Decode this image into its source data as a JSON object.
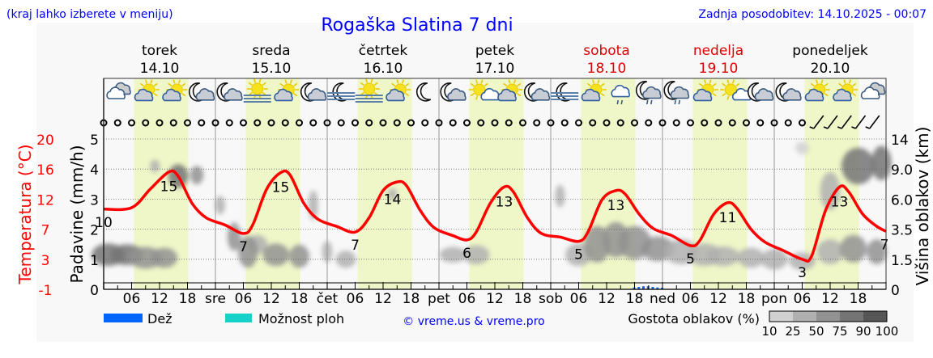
{
  "header": {
    "menu_hint": "(kraj lahko izberete v meniju)",
    "title": "Rogaška Slatina 7 dni",
    "updated": "Zadnja posodobitev: 14.10.2025 - 00:07"
  },
  "days": [
    {
      "name": "torek",
      "date": "14.10",
      "abbr": "",
      "weekend": false,
      "icons": [
        "cloudy",
        "partly-sunny",
        "partly-sunny",
        "moon-cloud"
      ]
    },
    {
      "name": "sreda",
      "date": "15.10",
      "abbr": "sre",
      "weekend": false,
      "icons": [
        "moon-cloud",
        "sun-fog",
        "partly-sunny",
        "moon-cloud"
      ]
    },
    {
      "name": "četrtek",
      "date": "16.10",
      "abbr": "čet",
      "weekend": false,
      "icons": [
        "moon-fog",
        "sun-fog",
        "partly-sunny",
        "moon"
      ]
    },
    {
      "name": "petek",
      "date": "17.10",
      "abbr": "pet",
      "weekend": false,
      "icons": [
        "moon-cloud",
        "sun-small-cloud",
        "partly-sunny",
        "moon-cloud"
      ]
    },
    {
      "name": "sobota",
      "date": "18.10",
      "abbr": "sob",
      "weekend": true,
      "icons": [
        "moon-fog",
        "partly-sunny",
        "cloud-rain",
        "moon-rain"
      ]
    },
    {
      "name": "nedelja",
      "date": "19.10",
      "abbr": "ned",
      "weekend": true,
      "icons": [
        "moon-rain",
        "partly-sunny",
        "sun-small-cloud",
        "moon-cloud"
      ]
    },
    {
      "name": "ponedeljek",
      "date": "20.10",
      "abbr": "pon",
      "weekend": false,
      "icons": [
        "moon-cloud",
        "partly-sunny",
        "partly-sunny",
        "cloudy"
      ]
    }
  ],
  "legend": {
    "rain": "Dež",
    "showers": "Možnost ploh",
    "copyright": "© vreme.us & vreme.pro",
    "cloud_density": "Gostota oblakov (%)",
    "cloud_scale": [
      "10",
      "25",
      "50",
      "75",
      "90",
      "100"
    ]
  },
  "colors": {
    "temperature": "#ff0000",
    "rain": "#0064ff",
    "showers": "#14d2c8",
    "daylight": "#eff7c8",
    "title": "#0000ff",
    "weekend": "#dd0000",
    "cloud_scale": [
      "#d0d0d0",
      "#b0b0b0",
      "#929292",
      "#747474",
      "#565656"
    ]
  },
  "chart_data": {
    "type": "line",
    "title": "Rogaška Slatina 7 dni",
    "x_unit": "hours from 14.10 00:00",
    "xlim": [
      0,
      168
    ],
    "hour_ticks": [
      "06",
      "12",
      "18"
    ],
    "left_axis_temp": {
      "label": "Temperatura (°C)",
      "ticks": [
        "20",
        "16",
        "12",
        "7",
        "3",
        "-1"
      ],
      "range": [
        -1,
        20
      ]
    },
    "left_axis_precip": {
      "label": "Padavine (mm/h)",
      "ticks": [
        "5",
        "4",
        "3",
        "2",
        "1",
        "0"
      ],
      "range": [
        0,
        5
      ]
    },
    "right_axis_cloud": {
      "label": "Višina oblakov (km)",
      "ticks": [
        "14",
        "9.0",
        "6.0",
        "3.5",
        "1.5",
        "0"
      ],
      "values": [
        14,
        9,
        6,
        3.5,
        1.5,
        0
      ]
    },
    "temperature": [
      [
        0,
        10.2
      ],
      [
        6,
        10.4
      ],
      [
        10,
        13
      ],
      [
        14,
        15.4
      ],
      [
        16,
        14.8
      ],
      [
        19,
        11
      ],
      [
        22,
        9
      ],
      [
        26,
        8
      ],
      [
        30,
        6.8
      ],
      [
        32,
        8
      ],
      [
        35,
        13
      ],
      [
        38,
        15.3
      ],
      [
        40,
        15
      ],
      [
        43,
        11
      ],
      [
        46,
        8.8
      ],
      [
        50,
        7.8
      ],
      [
        54,
        7
      ],
      [
        57,
        9
      ],
      [
        60,
        12.8
      ],
      [
        63,
        14
      ],
      [
        65,
        13.5
      ],
      [
        68,
        10
      ],
      [
        71,
        7.6
      ],
      [
        75,
        6.5
      ],
      [
        78,
        5.9
      ],
      [
        80,
        7
      ],
      [
        83,
        11
      ],
      [
        86,
        13.3
      ],
      [
        88,
        12.6
      ],
      [
        91,
        9
      ],
      [
        94,
        6.8
      ],
      [
        98,
        6.3
      ],
      [
        102,
        5.7
      ],
      [
        104,
        7
      ],
      [
        107,
        11.5
      ],
      [
        110,
        12.8
      ],
      [
        112,
        12.3
      ],
      [
        115,
        9.5
      ],
      [
        118,
        7.5
      ],
      [
        122,
        6.5
      ],
      [
        126,
        5.1
      ],
      [
        128,
        5.8
      ],
      [
        131,
        9.5
      ],
      [
        134,
        11.1
      ],
      [
        136,
        10.3
      ],
      [
        139,
        7.4
      ],
      [
        142,
        5.6
      ],
      [
        146,
        4.4
      ],
      [
        150,
        3.2
      ],
      [
        152,
        3.6
      ],
      [
        155,
        10
      ],
      [
        158,
        13.3
      ],
      [
        160,
        12.6
      ],
      [
        163,
        9.5
      ],
      [
        166,
        7.8
      ],
      [
        168,
        7.1
      ]
    ],
    "temp_labels": [
      [
        0,
        "10"
      ],
      [
        14,
        "15"
      ],
      [
        30,
        "7"
      ],
      [
        38,
        "15"
      ],
      [
        54,
        "7"
      ],
      [
        62,
        "14"
      ],
      [
        78,
        "6"
      ],
      [
        86,
        "13"
      ],
      [
        102,
        "5"
      ],
      [
        110,
        "13"
      ],
      [
        126,
        "5"
      ],
      [
        134,
        "11"
      ],
      [
        150,
        "3"
      ],
      [
        158,
        "13"
      ],
      [
        168,
        "7"
      ]
    ],
    "precipitation": [
      [
        114,
        0.06
      ],
      [
        115,
        0.08
      ],
      [
        116,
        0.1
      ],
      [
        117,
        0.1
      ],
      [
        118,
        0.08
      ],
      [
        119,
        0.06
      ],
      [
        120,
        0.05
      ]
    ],
    "cloud_cells": [
      [
        1,
        1.8,
        75,
        5,
        1.0
      ],
      [
        5,
        1.8,
        75,
        5,
        0.9
      ],
      [
        9,
        1.6,
        60,
        5,
        0.9
      ],
      [
        13,
        1.6,
        50,
        4,
        0.8
      ],
      [
        11,
        9.5,
        30,
        1.5,
        1
      ],
      [
        16,
        8.3,
        80,
        3,
        1.8
      ],
      [
        20,
        8.4,
        60,
        2,
        1.2
      ],
      [
        25,
        5.5,
        35,
        1.5,
        1
      ],
      [
        28,
        3.0,
        55,
        2,
        1.5
      ],
      [
        33,
        2.5,
        40,
        3,
        0.8
      ],
      [
        31,
        2.0,
        60,
        3,
        1.6
      ],
      [
        37,
        1.8,
        55,
        4,
        1
      ],
      [
        42,
        1.7,
        55,
        3,
        1
      ],
      [
        45,
        5.5,
        35,
        1,
        2
      ],
      [
        48,
        2.0,
        30,
        1.5,
        1
      ],
      [
        52,
        1.5,
        25,
        3,
        0.6
      ],
      [
        62,
        6.5,
        25,
        1,
        0.5
      ],
      [
        75,
        1.8,
        35,
        4,
        0.6
      ],
      [
        80,
        1.8,
        40,
        4,
        0.8
      ],
      [
        98,
        6.3,
        40,
        1,
        1.5
      ],
      [
        102,
        1.8,
        45,
        4,
        1
      ],
      [
        106,
        2.5,
        55,
        4,
        2
      ],
      [
        110,
        2.8,
        65,
        4,
        2
      ],
      [
        114,
        2.6,
        55,
        5,
        1.8
      ],
      [
        119,
        2.2,
        50,
        5,
        1.2
      ],
      [
        124,
        2.0,
        45,
        5,
        1.2
      ],
      [
        129,
        1.8,
        35,
        5,
        1
      ],
      [
        133,
        1.7,
        30,
        5,
        0.8
      ],
      [
        139,
        1.6,
        40,
        4,
        0.8
      ],
      [
        144,
        1.5,
        35,
        4,
        0.8
      ],
      [
        150,
        1.4,
        30,
        4,
        0.6
      ],
      [
        156,
        2.0,
        45,
        4,
        1.2
      ],
      [
        161,
        2.2,
        55,
        4,
        1.4
      ],
      [
        166,
        2.0,
        50,
        3,
        1.2
      ],
      [
        156,
        6.8,
        40,
        3,
        3
      ],
      [
        162,
        9.5,
        80,
        5,
        4
      ],
      [
        167,
        10,
        85,
        3,
        4
      ],
      [
        150,
        12.5,
        20,
        2,
        1
      ]
    ],
    "wind": [
      "calm",
      "calm",
      "calm",
      "calm",
      "calm",
      "calm",
      "calm",
      "calm",
      "calm",
      "calm",
      "calm",
      "calm",
      "calm",
      "calm",
      "calm",
      "calm",
      "calm",
      "calm",
      "calm",
      "calm",
      "calm",
      "calm",
      "calm",
      "calm",
      "calm",
      "calm",
      "calm",
      "calm",
      "calm",
      "calm",
      "calm",
      "calm",
      "calm",
      "calm",
      "calm",
      "calm",
      "calm",
      "calm",
      "calm",
      "calm",
      "calm",
      "calm",
      "calm",
      "calm",
      "calm",
      "calm",
      "calm",
      "calm",
      "calm",
      "calm",
      "calm",
      "barb",
      "barb",
      "barb",
      "barb",
      "barb"
    ]
  }
}
